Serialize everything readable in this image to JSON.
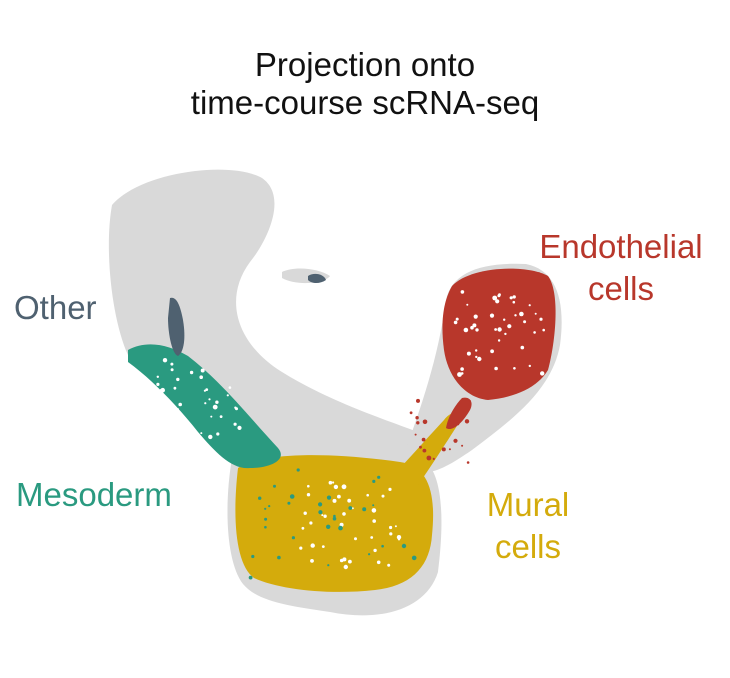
{
  "chart_data": {
    "type": "scatter",
    "title_lines": [
      "Projection onto",
      "time-course scRNA-seq"
    ],
    "xlabel": "",
    "ylabel": "",
    "grid": false,
    "legend": "inline labels",
    "background_color": "#d9d9d9",
    "series": [
      {
        "name": "Other",
        "color": "#4f6170"
      },
      {
        "name": "Endothelial cells",
        "color": "#b8372b"
      },
      {
        "name": "Mesoderm",
        "color": "#2a9a80"
      },
      {
        "name": "Mural cells",
        "color": "#d4ab0c"
      }
    ]
  },
  "labels": {
    "other": "Other",
    "endothelial": [
      "Endothelial",
      "cells"
    ],
    "mesoderm": "Mesoderm",
    "mural": [
      "Mural",
      "cells"
    ]
  }
}
